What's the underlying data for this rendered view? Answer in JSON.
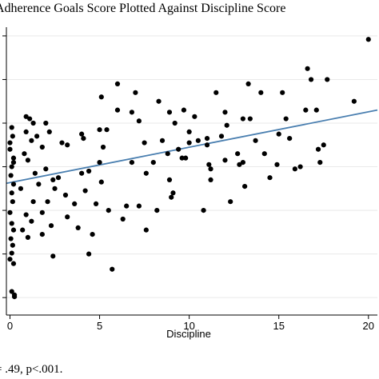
{
  "header": {
    "title": "Adherence Goals Score Plotted Against Discipline Score"
  },
  "footer": {
    "note": "= .49, p<.001."
  },
  "colors": {
    "points": "#000000",
    "fit_line": "#4a7fb0",
    "grid": "#e9e9e9"
  },
  "chart_data": {
    "type": "scatter",
    "title": "Adherence Goals Score Plotted Against Discipline Score",
    "xlabel": "Discipline",
    "ylabel": "",
    "xlim": [
      -0.2,
      20.5
    ],
    "ylim": [
      -0.4,
      6.2
    ],
    "xticks": [
      0,
      5,
      10,
      15,
      20
    ],
    "yticks": [
      0,
      1,
      2,
      3,
      4,
      5,
      6
    ],
    "grid": true,
    "fit_line": {
      "x": [
        -0.2,
        20.5
      ],
      "y": [
        2.62,
        4.3
      ]
    },
    "points": [
      [
        0.1,
        3.9
      ],
      [
        0.15,
        3.7
      ],
      [
        0.0,
        3.4
      ],
      [
        0.2,
        3.2
      ],
      [
        0.1,
        3.0
      ],
      [
        0.05,
        2.8
      ],
      [
        0.2,
        2.6
      ],
      [
        0.1,
        2.4
      ],
      [
        0.15,
        2.2
      ],
      [
        0.0,
        1.95
      ],
      [
        0.1,
        1.7
      ],
      [
        0.2,
        1.55
      ],
      [
        0.05,
        1.35
      ],
      [
        0.15,
        1.2
      ],
      [
        0.1,
        1.02
      ],
      [
        0.0,
        0.88
      ],
      [
        0.2,
        0.78
      ],
      [
        0.1,
        0.14
      ],
      [
        0.25,
        0.06
      ],
      [
        0.25,
        0.02
      ],
      [
        0.0,
        3.55
      ],
      [
        0.2,
        3.1
      ],
      [
        0.9,
        4.15
      ],
      [
        1.1,
        4.1
      ],
      [
        1.3,
        4.0
      ],
      [
        0.9,
        3.8
      ],
      [
        1.2,
        3.6
      ],
      [
        0.8,
        3.3
      ],
      [
        1.0,
        3.15
      ],
      [
        1.4,
        2.85
      ],
      [
        0.6,
        2.5
      ],
      [
        1.3,
        2.2
      ],
      [
        0.9,
        1.9
      ],
      [
        1.2,
        1.75
      ],
      [
        0.7,
        1.55
      ],
      [
        1.0,
        1.38
      ],
      [
        1.5,
        3.7
      ],
      [
        1.6,
        2.6
      ],
      [
        1.8,
        3.45
      ],
      [
        2.0,
        4.0
      ],
      [
        2.2,
        3.8
      ],
      [
        2.0,
        2.95
      ],
      [
        2.4,
        2.7
      ],
      [
        2.5,
        2.5
      ],
      [
        2.1,
        2.2
      ],
      [
        1.8,
        1.95
      ],
      [
        2.3,
        1.65
      ],
      [
        1.8,
        1.45
      ],
      [
        2.4,
        0.95
      ],
      [
        2.7,
        2.75
      ],
      [
        2.9,
        3.55
      ],
      [
        3.2,
        3.5
      ],
      [
        3.1,
        2.35
      ],
      [
        3.2,
        1.85
      ],
      [
        3.6,
        2.15
      ],
      [
        3.8,
        1.6
      ],
      [
        4.0,
        2.85
      ],
      [
        4.0,
        3.75
      ],
      [
        4.1,
        3.65
      ],
      [
        4.2,
        2.45
      ],
      [
        4.4,
        1.0
      ],
      [
        4.4,
        2.9
      ],
      [
        4.6,
        1.45
      ],
      [
        4.8,
        2.15
      ],
      [
        5.0,
        3.1
      ],
      [
        5.1,
        4.6
      ],
      [
        5.4,
        3.85
      ],
      [
        5.0,
        3.85
      ],
      [
        5.1,
        2.65
      ],
      [
        5.2,
        3.45
      ],
      [
        5.5,
        2.0
      ],
      [
        5.7,
        0.65
      ],
      [
        6.0,
        4.9
      ],
      [
        6.0,
        4.3
      ],
      [
        6.3,
        1.8
      ],
      [
        6.5,
        2.1
      ],
      [
        6.8,
        3.1
      ],
      [
        6.8,
        4.25
      ],
      [
        7.0,
        4.7
      ],
      [
        7.2,
        4.05
      ],
      [
        7.5,
        3.55
      ],
      [
        7.6,
        2.85
      ],
      [
        7.2,
        2.1
      ],
      [
        7.6,
        1.55
      ],
      [
        8.0,
        3.1
      ],
      [
        8.2,
        2.0
      ],
      [
        8.3,
        4.5
      ],
      [
        8.5,
        3.6
      ],
      [
        8.8,
        3.3
      ],
      [
        8.9,
        4.25
      ],
      [
        8.9,
        2.7
      ],
      [
        9.0,
        2.3
      ],
      [
        9.1,
        2.4
      ],
      [
        9.2,
        4.0
      ],
      [
        9.4,
        3.4
      ],
      [
        9.6,
        3.2
      ],
      [
        9.7,
        4.3
      ],
      [
        9.8,
        3.2
      ],
      [
        10.0,
        3.55
      ],
      [
        10.0,
        3.8
      ],
      [
        10.3,
        4.15
      ],
      [
        10.5,
        3.6
      ],
      [
        10.8,
        2.0
      ],
      [
        11.0,
        3.5
      ],
      [
        11.0,
        3.65
      ],
      [
        11.1,
        3.05
      ],
      [
        11.2,
        2.7
      ],
      [
        11.2,
        2.95
      ],
      [
        11.5,
        4.7
      ],
      [
        11.8,
        3.7
      ],
      [
        12.0,
        3.15
      ],
      [
        12.0,
        4.25
      ],
      [
        12.1,
        3.95
      ],
      [
        12.3,
        2.2
      ],
      [
        12.7,
        3.3
      ],
      [
        12.8,
        3.05
      ],
      [
        13.0,
        3.1
      ],
      [
        13.0,
        4.1
      ],
      [
        13.1,
        2.55
      ],
      [
        13.3,
        4.9
      ],
      [
        13.4,
        4.1
      ],
      [
        13.7,
        3.6
      ],
      [
        14.0,
        4.7
      ],
      [
        14.2,
        3.3
      ],
      [
        14.5,
        2.75
      ],
      [
        14.9,
        3.05
      ],
      [
        15.0,
        3.75
      ],
      [
        15.2,
        4.7
      ],
      [
        15.4,
        4.1
      ],
      [
        15.6,
        3.65
      ],
      [
        15.9,
        2.95
      ],
      [
        16.2,
        3.0
      ],
      [
        16.5,
        4.3
      ],
      [
        16.6,
        5.25
      ],
      [
        16.8,
        5.0
      ],
      [
        17.1,
        4.3
      ],
      [
        17.2,
        3.4
      ],
      [
        17.3,
        3.1
      ],
      [
        17.5,
        3.5
      ],
      [
        17.7,
        5.0
      ],
      [
        19.2,
        4.5
      ],
      [
        20.0,
        5.92
      ]
    ]
  }
}
